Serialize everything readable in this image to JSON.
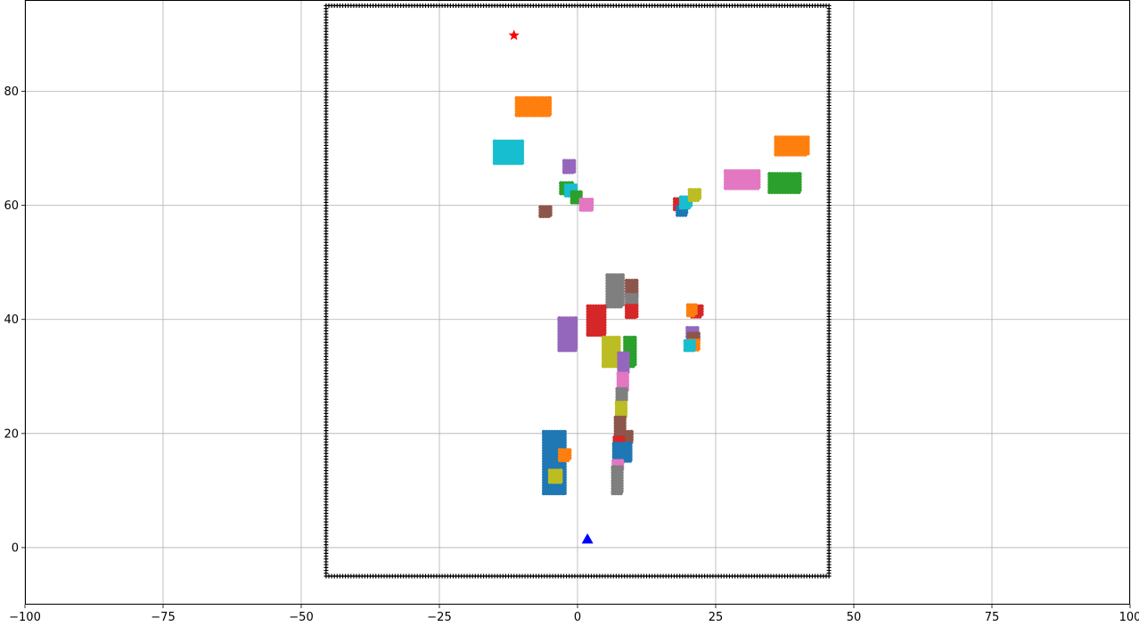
{
  "chart_data": {
    "type": "scatter",
    "title": "",
    "xlabel": "",
    "ylabel": "",
    "xlim": [
      -100,
      100
    ],
    "ylim": [
      -10,
      96
    ],
    "grid": true,
    "xticks": [
      -100,
      -75,
      -50,
      -25,
      0,
      25,
      50,
      75,
      100
    ],
    "yticks": [
      0,
      20,
      40,
      60,
      80
    ],
    "xtick_labels": [
      "−100",
      "−75",
      "−50",
      "−25",
      "0",
      "25",
      "50",
      "75",
      "100"
    ],
    "ytick_labels": [
      "0",
      "20",
      "40",
      "60",
      "80"
    ],
    "boundary": {
      "x0": -45.5,
      "x1": 45.5,
      "y0": -5,
      "y1": 95,
      "color": "#000000"
    },
    "goal": {
      "x": -11.5,
      "y": 89.8,
      "marker": "star",
      "color": "#ff0000"
    },
    "start": {
      "x": 1.8,
      "y": 1.5,
      "marker": "triangle",
      "color": "#0000ff"
    },
    "obstacles": [
      {
        "cx": -8,
        "cy": 77.3,
        "w": 6,
        "h": 3,
        "color": "#ff7f0e"
      },
      {
        "cx": -12.5,
        "cy": 69.3,
        "w": 5,
        "h": 3.8,
        "color": "#17becf"
      },
      {
        "cx": -1.5,
        "cy": 66.8,
        "w": 1.8,
        "h": 2,
        "color": "#9467bd"
      },
      {
        "cx": -2,
        "cy": 63,
        "w": 2,
        "h": 1.8,
        "color": "#2ca02c"
      },
      {
        "cx": -1.2,
        "cy": 62.6,
        "w": 1.8,
        "h": 1.8,
        "color": "#17becf"
      },
      {
        "cx": -0.2,
        "cy": 61.4,
        "w": 1.6,
        "h": 1.8,
        "color": "#2ca02c"
      },
      {
        "cx": -5.8,
        "cy": 58.9,
        "w": 1.8,
        "h": 1.6,
        "color": "#8c564b"
      },
      {
        "cx": 1.6,
        "cy": 60.1,
        "w": 2,
        "h": 1.8,
        "color": "#e377c2"
      },
      {
        "cx": 38.8,
        "cy": 70.4,
        "w": 5.8,
        "h": 3,
        "color": "#ff7f0e"
      },
      {
        "cx": 29.8,
        "cy": 64.5,
        "w": 6,
        "h": 3,
        "color": "#e377c2"
      },
      {
        "cx": 37.5,
        "cy": 63.9,
        "w": 5.5,
        "h": 3.2,
        "color": "#2ca02c"
      },
      {
        "cx": 18.5,
        "cy": 60.2,
        "w": 1.8,
        "h": 1.8,
        "color": "#d62728"
      },
      {
        "cx": 18.9,
        "cy": 59,
        "w": 1.6,
        "h": 1.4,
        "color": "#1f77b4"
      },
      {
        "cx": 19.6,
        "cy": 60.5,
        "w": 1.8,
        "h": 1.8,
        "color": "#17becf"
      },
      {
        "cx": 21.2,
        "cy": 61.8,
        "w": 1.8,
        "h": 1.8,
        "color": "#bcbd22"
      },
      {
        "cx": 6.8,
        "cy": 45,
        "w": 2.8,
        "h": 5.5,
        "color": "#7f7f7f"
      },
      {
        "cx": 9.8,
        "cy": 45.3,
        "w": 1.8,
        "h": 3,
        "color": "#8c564b"
      },
      {
        "cx": 9.8,
        "cy": 43.3,
        "w": 1.8,
        "h": 2,
        "color": "#7f7f7f"
      },
      {
        "cx": 9.8,
        "cy": 41.4,
        "w": 1.8,
        "h": 2,
        "color": "#d62728"
      },
      {
        "cx": 3.4,
        "cy": 39.8,
        "w": 3,
        "h": 5,
        "color": "#d62728"
      },
      {
        "cx": -1.8,
        "cy": 37.4,
        "w": 3,
        "h": 5.6,
        "color": "#9467bd"
      },
      {
        "cx": 6.1,
        "cy": 34.3,
        "w": 2.8,
        "h": 5,
        "color": "#bcbd22"
      },
      {
        "cx": 9.5,
        "cy": 34.3,
        "w": 1.8,
        "h": 5,
        "color": "#2ca02c"
      },
      {
        "cx": 8.3,
        "cy": 32.3,
        "w": 1.6,
        "h": 3.5,
        "color": "#9467bd"
      },
      {
        "cx": 8.2,
        "cy": 29,
        "w": 1.6,
        "h": 3,
        "color": "#e377c2"
      },
      {
        "cx": 8,
        "cy": 26.8,
        "w": 1.6,
        "h": 2,
        "color": "#7f7f7f"
      },
      {
        "cx": 7.9,
        "cy": 24.1,
        "w": 1.6,
        "h": 2.6,
        "color": "#bcbd22"
      },
      {
        "cx": 7.7,
        "cy": 21.3,
        "w": 1.6,
        "h": 3,
        "color": "#8c564b"
      },
      {
        "cx": 8.8,
        "cy": 19.4,
        "w": 2,
        "h": 1.8,
        "color": "#8c564b"
      },
      {
        "cx": 7.5,
        "cy": 18.5,
        "w": 1.6,
        "h": 1.6,
        "color": "#d62728"
      },
      {
        "cx": 8.1,
        "cy": 16.7,
        "w": 3,
        "h": 3,
        "color": "#1f77b4"
      },
      {
        "cx": 7.3,
        "cy": 14.4,
        "w": 1.6,
        "h": 1.6,
        "color": "#e377c2"
      },
      {
        "cx": 7.2,
        "cy": 11.8,
        "w": 1.6,
        "h": 4.6,
        "color": "#7f7f7f"
      },
      {
        "cx": -4.2,
        "cy": 14.9,
        "w": 3.8,
        "h": 10.8,
        "color": "#1f77b4"
      },
      {
        "cx": -2.3,
        "cy": 16.2,
        "w": 1.8,
        "h": 1.8,
        "color": "#ff7f0e"
      },
      {
        "cx": -4,
        "cy": 12.5,
        "w": 2,
        "h": 2,
        "color": "#bcbd22"
      },
      {
        "cx": 21.6,
        "cy": 41.4,
        "w": 1.8,
        "h": 1.8,
        "color": "#d62728"
      },
      {
        "cx": 20.7,
        "cy": 41.6,
        "w": 1.4,
        "h": 1.8,
        "color": "#ff7f0e"
      },
      {
        "cx": 20.8,
        "cy": 37.7,
        "w": 1.8,
        "h": 1.6,
        "color": "#9467bd"
      },
      {
        "cx": 21,
        "cy": 36.8,
        "w": 1.8,
        "h": 1.4,
        "color": "#8c564b"
      },
      {
        "cx": 21.1,
        "cy": 35.5,
        "w": 1.6,
        "h": 1.6,
        "color": "#ff7f0e"
      },
      {
        "cx": 20.3,
        "cy": 35.4,
        "w": 1.6,
        "h": 1.6,
        "color": "#17becf"
      }
    ]
  }
}
